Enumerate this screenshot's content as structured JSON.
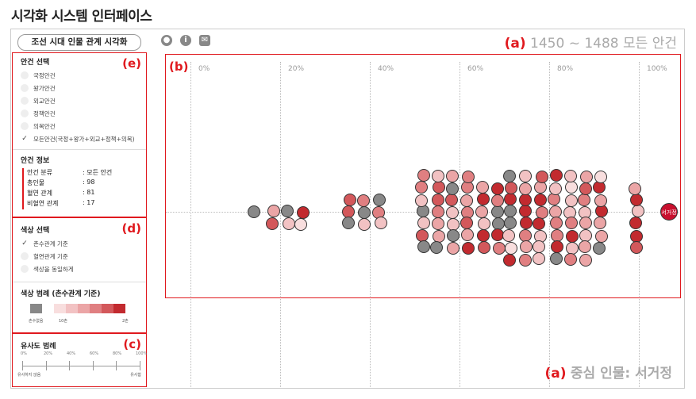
{
  "page_title": "시각화 시스템 인터페이스",
  "header": {
    "title_button": "조선 시대 인물 관계 시각화",
    "icons": [
      "user-icon",
      "info-icon",
      "mail-icon"
    ],
    "caption_tag": "(a)",
    "caption_text": "1450 ~ 1488 모든 안건"
  },
  "footer_caption": {
    "tag": "(a)",
    "text": "중심 인물: 서거정"
  },
  "panel_labels": {
    "b": "(b)",
    "c": "(c)",
    "d": "(d)",
    "e": "(e)"
  },
  "agenda": {
    "title": "안건 선택",
    "options": [
      "국정안건",
      "왕가안건",
      "외교안건",
      "정책안건",
      "의복안건",
      "모든안건(국정+왕가+외교+정책+의복)"
    ],
    "selected_index": 5
  },
  "info": {
    "title": "안건 정보",
    "rows": [
      {
        "k": "안건 분류",
        "v": ": 모든 안건"
      },
      {
        "k": "총인물",
        "v": ": 98"
      },
      {
        "k": "혈연 관계",
        "v": ": 81"
      },
      {
        "k": "비혈연 관계",
        "v": ": 17"
      }
    ]
  },
  "color_select": {
    "title": "색상 선택",
    "options": [
      "촌수관계 기준",
      "혈연관계 기준",
      "색상을 동일하게"
    ],
    "selected_index": 0
  },
  "color_legend": {
    "title": "색상 범례 (촌수관계 기준)",
    "unknown_label": "촌수없음",
    "low_label": "10촌",
    "high_label": "2촌",
    "unknown_color": "#888888",
    "ramp": [
      "#f8dede",
      "#f2c2c3",
      "#eba5a6",
      "#e07f81",
      "#d3585b",
      "#c22a2f"
    ]
  },
  "similarity_legend": {
    "title": "유사도 범례",
    "ticks": [
      "0%",
      "20%",
      "40%",
      "60%",
      "80%",
      "100%"
    ],
    "left_label": "유사하지 않음",
    "right_label": "유사함"
  },
  "axis_ticks": [
    "0%",
    "20%",
    "40%",
    "60%",
    "80%",
    "100%"
  ],
  "center_node": "서거정"
}
